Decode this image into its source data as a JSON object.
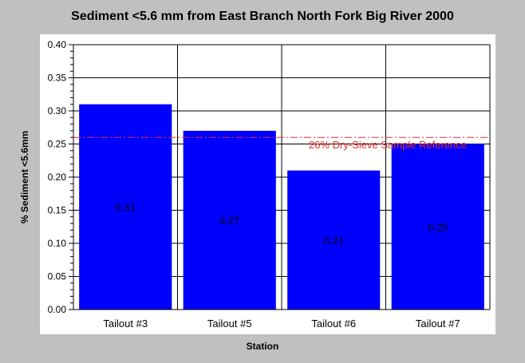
{
  "chart_data": {
    "type": "bar",
    "title": "Sediment <5.6 mm from East Branch North Fork Big River 2000",
    "xlabel": "Station",
    "ylabel": "% Sediment <5.6mm",
    "categories": [
      "Tailout #3",
      "Tailout #5",
      "Tailout #6",
      "Tailout #7"
    ],
    "values": [
      0.31,
      0.27,
      0.21,
      0.25
    ],
    "data_labels": [
      "0.31",
      "0.27",
      "0.21",
      "0.25"
    ],
    "ylim": [
      0,
      0.4
    ],
    "yticks": [
      "0.00",
      "0.05",
      "0.10",
      "0.15",
      "0.20",
      "0.25",
      "0.30",
      "0.35",
      "0.40"
    ],
    "grid": true,
    "reference_line": {
      "value": 0.26,
      "label": "26% Dry-Sieve Sample Reference",
      "color": "#e03030"
    },
    "bar_color": "#0000ff"
  }
}
